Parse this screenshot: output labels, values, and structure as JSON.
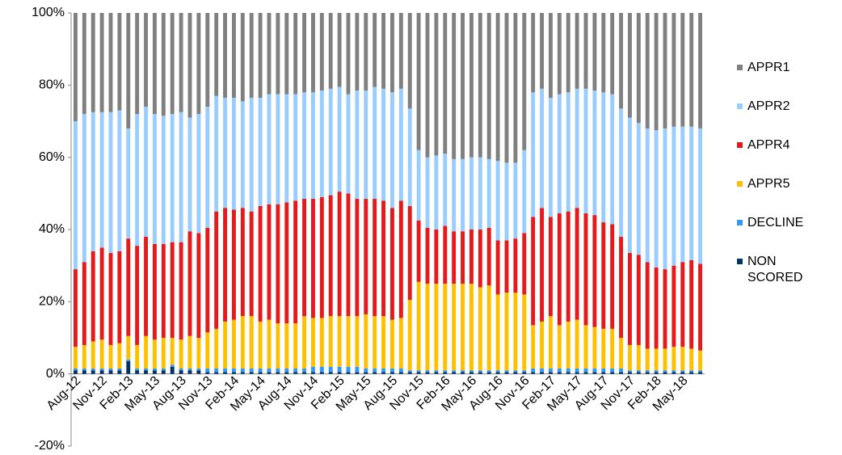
{
  "chart_data": {
    "type": "stacked-bar",
    "categories": [
      "Aug-12",
      null,
      null,
      "Nov-12",
      null,
      null,
      "Feb-13",
      null,
      null,
      "May-13",
      null,
      null,
      "Aug-13",
      null,
      null,
      "Nov-13",
      null,
      null,
      "Feb-14",
      null,
      null,
      "May-14",
      null,
      null,
      "Aug-14",
      null,
      null,
      "Nov-14",
      null,
      null,
      "Feb-15",
      null,
      null,
      "May-15",
      null,
      null,
      "Aug-15",
      null,
      null,
      "Nov-15",
      null,
      null,
      "Feb-16",
      null,
      null,
      "May-16",
      null,
      null,
      "Aug-16",
      null,
      null,
      "Nov-16",
      null,
      null,
      "Feb-17",
      null,
      null,
      "May-17",
      null,
      null,
      "Aug-17",
      null,
      null,
      "Nov-17",
      null,
      null,
      "Feb-18",
      null,
      null,
      "May-18",
      null,
      null
    ],
    "ylim": [
      -20,
      100
    ],
    "yticks": [
      {
        "value": -20,
        "label": "-20%"
      },
      {
        "value": 0,
        "label": "0%"
      },
      {
        "value": 20,
        "label": "20%"
      },
      {
        "value": 40,
        "label": "40%"
      },
      {
        "value": 60,
        "label": "60%"
      },
      {
        "value": 80,
        "label": "80%"
      },
      {
        "value": 100,
        "label": "100%"
      }
    ],
    "legend": "right",
    "series": [
      {
        "name": "NON SCORED",
        "color": "#003366",
        "values": [
          1,
          1,
          1,
          1,
          1,
          1,
          3.5,
          1,
          1,
          1,
          1,
          2,
          1,
          1,
          1,
          0.5,
          0.5,
          0.5,
          0.5,
          0.5,
          0.5,
          0.5,
          0.5,
          0.5,
          0.5,
          0.5,
          0.5,
          0.5,
          0.5,
          0.5,
          0.5,
          0.5,
          0.5,
          0.5,
          0.5,
          0.5,
          0.5,
          0.5,
          0.5,
          0.5,
          0.5,
          0.5,
          0.5,
          0.5,
          0.5,
          0.5,
          0.5,
          0.5,
          0.5,
          0.5,
          0.5,
          0.5,
          0.5,
          0.5,
          0.5,
          0.5,
          0.5,
          0.5,
          0.5,
          0.5,
          0.5,
          0.5,
          0.5,
          0.5,
          0.5,
          0.5,
          0.5,
          0.5,
          0.5,
          0.5,
          0.5,
          0.5
        ]
      },
      {
        "name": "DECLINE",
        "color": "#3399ff",
        "values": [
          0.5,
          0.5,
          0.5,
          0.5,
          0.5,
          0.5,
          0.5,
          0.5,
          0.5,
          0.5,
          0.5,
          0.5,
          0.5,
          0.5,
          0.5,
          1,
          1,
          1,
          1,
          1,
          1,
          1,
          1,
          1,
          1,
          1,
          1,
          1.5,
          1.5,
          1.5,
          1.5,
          1.5,
          1.5,
          1,
          1,
          1,
          1,
          1,
          0.5,
          0.5,
          0.5,
          0.5,
          0.5,
          0.5,
          0.5,
          0.5,
          0.5,
          0.5,
          0.5,
          0.5,
          0.5,
          0.5,
          1,
          1,
          1,
          1,
          1,
          1,
          1,
          1,
          1,
          1,
          1,
          0.5,
          0.5,
          0.5,
          0.5,
          0.5,
          0.5,
          0.5,
          0.5,
          0.5
        ]
      },
      {
        "name": "APPR5",
        "color": "#ffc000",
        "values": [
          6,
          6.5,
          7.5,
          8,
          6.5,
          7,
          6.5,
          6.5,
          9,
          8,
          8.5,
          7.5,
          8,
          9,
          8.5,
          10,
          11,
          13,
          13.5,
          14.5,
          14.5,
          13,
          13.5,
          12.5,
          12.5,
          12.5,
          14.5,
          13.5,
          13.5,
          14,
          14,
          14,
          14,
          15,
          14.5,
          14.5,
          13.5,
          14,
          19.5,
          24.5,
          24,
          24,
          24,
          24,
          24,
          24,
          23,
          23.5,
          21,
          21.5,
          21.5,
          21,
          12,
          13,
          14.5,
          12,
          13,
          13.5,
          12,
          11.5,
          11,
          11,
          8.5,
          7,
          7,
          6,
          6,
          6,
          6.5,
          6.5,
          6,
          5.5
        ]
      },
      {
        "name": "APPR4",
        "color": "#e41a1c",
        "values": [
          21.5,
          23,
          25,
          25.5,
          25.5,
          25.5,
          27,
          27.5,
          27.5,
          26.5,
          26,
          26.5,
          27,
          29,
          29,
          29,
          32.5,
          31.5,
          30.5,
          30,
          29,
          32,
          32,
          33,
          33.5,
          34,
          32.5,
          33,
          33.5,
          33.5,
          34.5,
          34,
          32.5,
          32,
          32.5,
          32,
          31,
          32.5,
          26,
          17,
          15.5,
          15,
          16,
          14.5,
          14.5,
          15,
          16,
          16,
          15,
          14.5,
          15,
          17,
          30,
          31.5,
          27.5,
          31,
          30.5,
          31,
          31,
          31,
          29.5,
          29,
          28,
          25.5,
          25,
          24,
          22.5,
          22,
          22.5,
          23.5,
          24.5,
          24
        ]
      },
      {
        "name": "APPR2",
        "color": "#99ccff",
        "values": [
          41,
          41,
          38.5,
          37.5,
          39,
          39,
          30.5,
          36.5,
          36,
          36,
          35.5,
          35.5,
          36,
          31.5,
          33,
          33.5,
          32,
          30.5,
          31,
          29.5,
          31.5,
          30,
          30.5,
          30.5,
          30,
          29.5,
          29.5,
          29.5,
          29.5,
          29.5,
          29,
          27.5,
          30,
          30,
          31,
          31,
          32,
          31,
          27,
          19.5,
          19.5,
          20.5,
          20,
          20,
          20,
          20,
          20,
          19,
          22,
          21.5,
          21,
          23,
          34.5,
          33,
          33,
          33,
          33,
          33,
          34.5,
          34.5,
          36,
          36,
          35.5,
          37.5,
          36.5,
          37,
          38,
          39,
          38.5,
          37.5,
          37,
          37.5
        ]
      },
      {
        "name": "APPR1",
        "color": "#808080",
        "values": [
          30,
          28,
          27.5,
          27.5,
          27.5,
          27,
          32,
          28,
          26,
          28,
          28.5,
          28,
          27.5,
          29,
          28,
          26,
          23,
          23.5,
          23.5,
          24.5,
          23.5,
          23.5,
          22.5,
          22.5,
          22.5,
          22.5,
          22,
          22,
          21.5,
          21,
          20.5,
          22.5,
          21.5,
          21.5,
          20.5,
          21,
          22,
          21,
          26.5,
          38,
          40,
          39.5,
          39,
          40.5,
          40.5,
          40,
          40,
          40.5,
          41,
          41.5,
          41.5,
          38,
          22,
          21,
          23.5,
          22.5,
          22,
          21,
          21,
          21.5,
          22,
          22.5,
          26.5,
          29,
          30.5,
          32,
          32.5,
          32,
          31.5,
          31.5,
          31.5,
          32
        ]
      }
    ]
  }
}
